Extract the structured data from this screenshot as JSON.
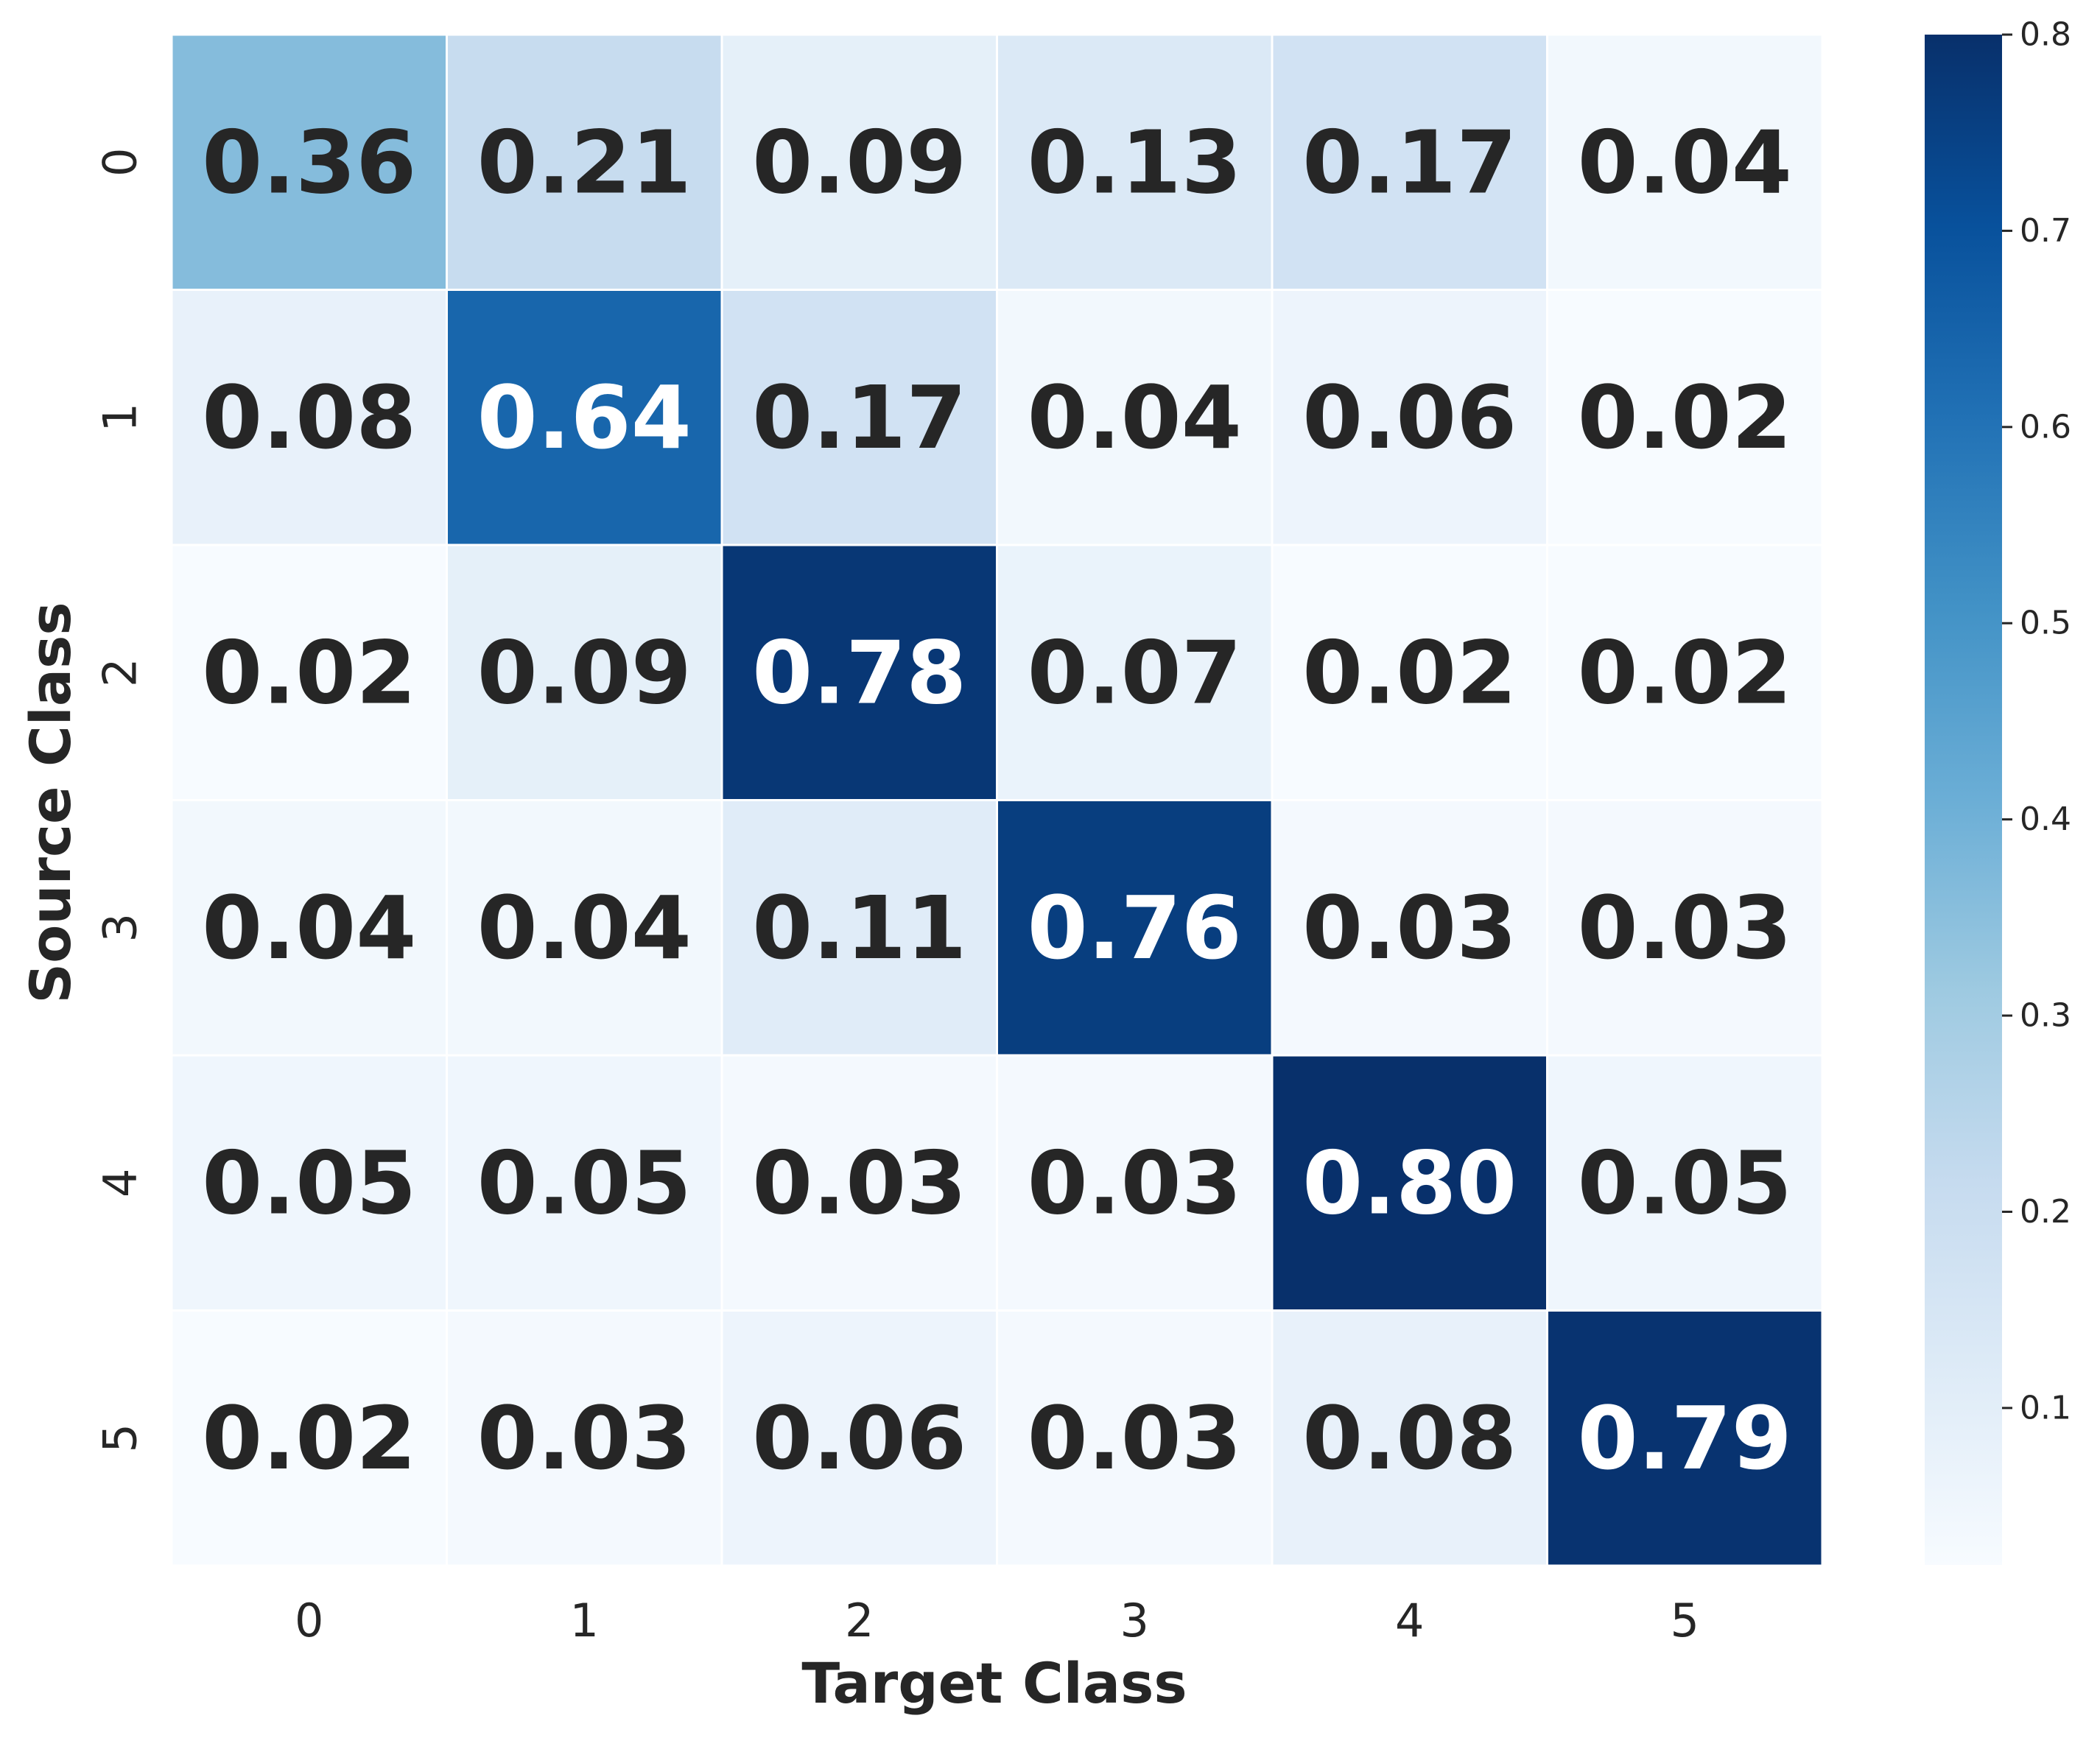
{
  "chart_data": {
    "type": "heatmap",
    "xlabel": "Target Class",
    "ylabel": "Source Class",
    "x_categories": [
      "0",
      "1",
      "2",
      "3",
      "4",
      "5"
    ],
    "y_categories": [
      "0",
      "1",
      "2",
      "3",
      "4",
      "5"
    ],
    "values": [
      [
        0.36,
        0.21,
        0.09,
        0.13,
        0.17,
        0.04
      ],
      [
        0.08,
        0.64,
        0.17,
        0.04,
        0.06,
        0.02
      ],
      [
        0.02,
        0.09,
        0.78,
        0.07,
        0.02,
        0.02
      ],
      [
        0.04,
        0.04,
        0.11,
        0.76,
        0.03,
        0.03
      ],
      [
        0.05,
        0.05,
        0.03,
        0.03,
        0.8,
        0.05
      ],
      [
        0.02,
        0.03,
        0.06,
        0.03,
        0.08,
        0.79
      ]
    ],
    "labels": [
      [
        "0.36",
        "0.21",
        "0.09",
        "0.13",
        "0.17",
        "0.04"
      ],
      [
        "0.08",
        "0.64",
        "0.17",
        "0.04",
        "0.06",
        "0.02"
      ],
      [
        "0.02",
        "0.09",
        "0.78",
        "0.07",
        "0.02",
        "0.02"
      ],
      [
        "0.04",
        "0.04",
        "0.11",
        "0.76",
        "0.03",
        "0.03"
      ],
      [
        "0.05",
        "0.05",
        "0.03",
        "0.03",
        "0.80",
        "0.05"
      ],
      [
        "0.02",
        "0.03",
        "0.06",
        "0.03",
        "0.08",
        "0.79"
      ]
    ],
    "colormap": "Blues",
    "colorbar": {
      "range": [
        0.02,
        0.8
      ],
      "ticks": [
        0.1,
        0.2,
        0.3,
        0.4,
        0.5,
        0.6,
        0.7,
        0.8
      ],
      "tick_labels": [
        "0.1",
        "0.2",
        "0.3",
        "0.4",
        "0.5",
        "0.6",
        "0.7",
        "0.8"
      ]
    },
    "text_colors": {
      "dark": "#262626",
      "light": "#ffffff"
    }
  }
}
